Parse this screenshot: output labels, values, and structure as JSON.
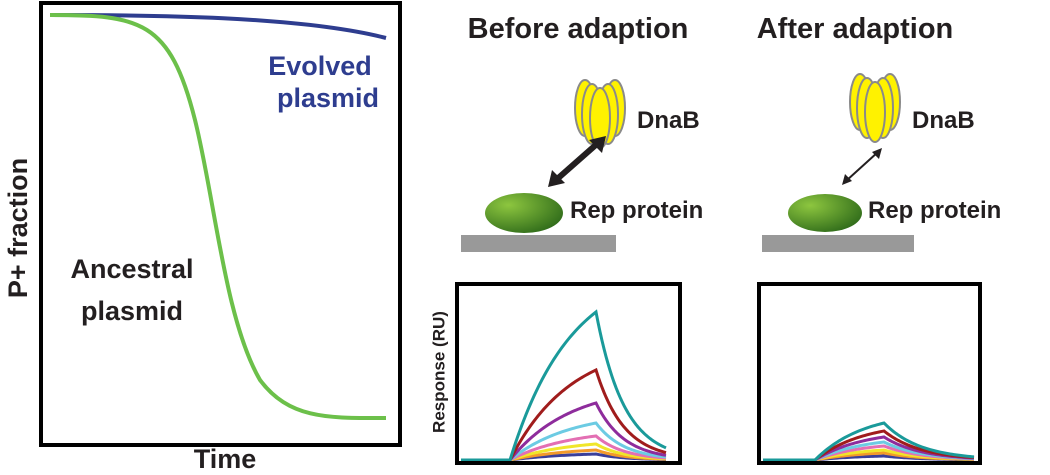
{
  "left_panel": {
    "y_axis_label": "P+ fraction",
    "x_axis_label": "Time",
    "curve_labels": [
      [
        "Evolved",
        "plasmid"
      ],
      [
        "Ancestral",
        "plasmid"
      ]
    ]
  },
  "panels": [
    {
      "title": "Before adaption",
      "helicase": "DnaB",
      "protein": "Rep protein"
    },
    {
      "title": "After adaption",
      "helicase": "DnaB",
      "protein": "Rep protein"
    }
  ],
  "sensorgram_y_label": "Response (RU)"
}
